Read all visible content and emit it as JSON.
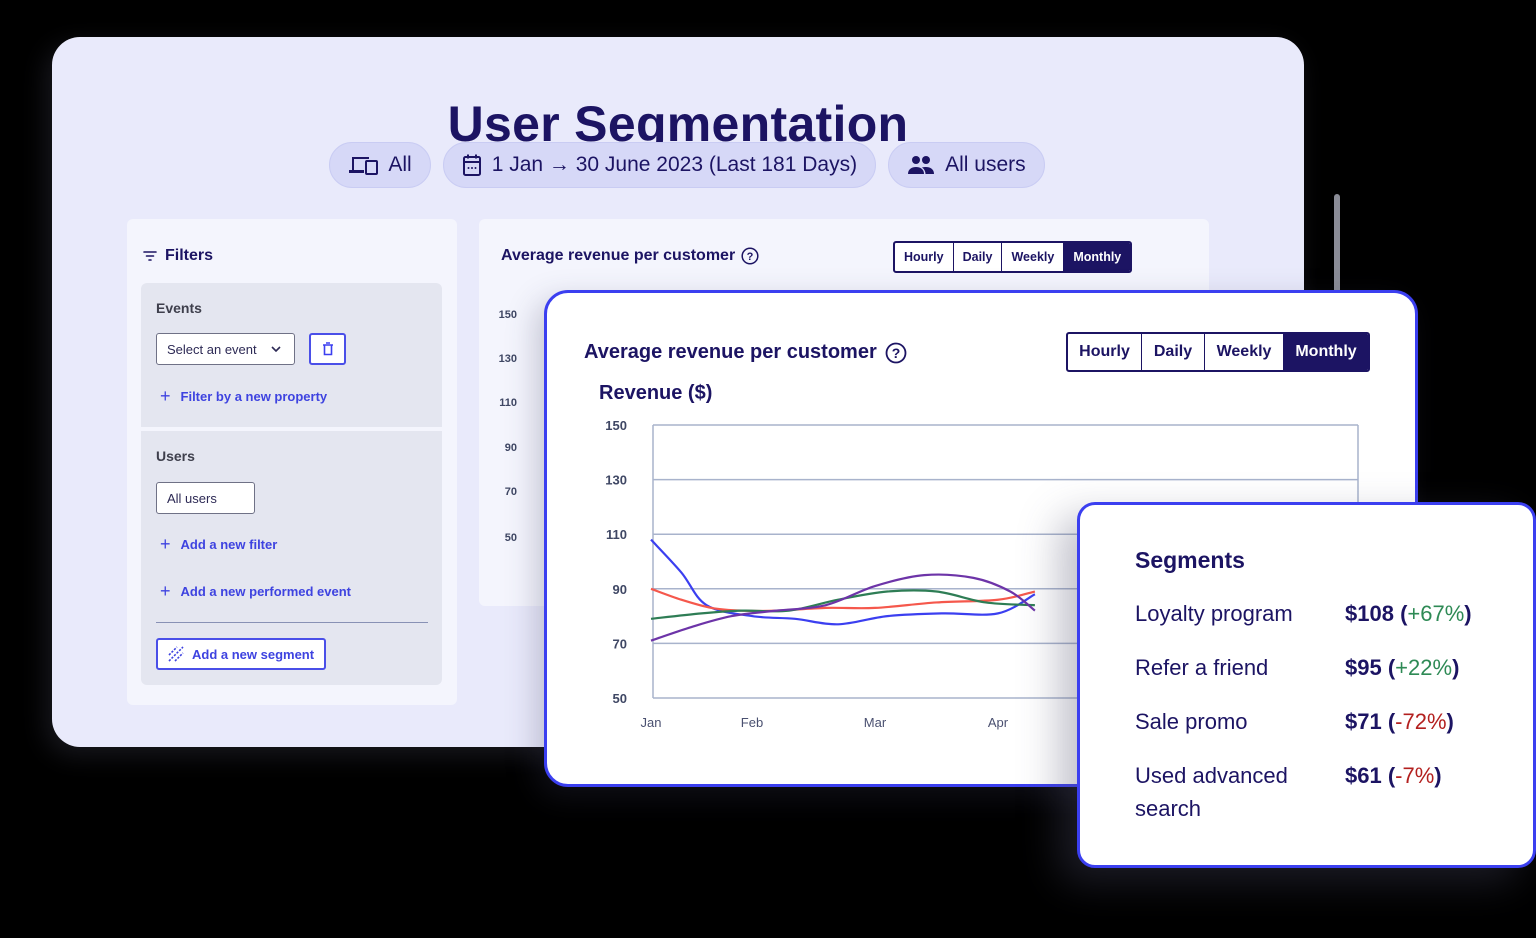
{
  "page": {
    "title": "User Segmentation"
  },
  "header_pills": {
    "platform": {
      "icon": "devices-icon",
      "label": "All"
    },
    "date_range": {
      "icon": "calendar-icon",
      "label": "1 Jan → 30 June 2023 (Last 181 Days)"
    },
    "audience": {
      "icon": "users-icon",
      "label": "All users"
    }
  },
  "filters": {
    "title": "Filters",
    "icon": "filter-icon",
    "events": {
      "label": "Events",
      "select_placeholder": "Select an event",
      "delete_icon": "trash-icon",
      "add_property_label": "Filter by a new property"
    },
    "users": {
      "label": "Users",
      "select_value": "All users",
      "add_filter_label": "Add a new filter",
      "add_event_label": "Add a new performed event",
      "add_segment_label": "Add a new segment",
      "add_segment_icon": "hatch-icon"
    }
  },
  "background_chart": {
    "title": "Average revenue per customer",
    "help_icon": "help-circle-icon",
    "granularity_options": [
      "Hourly",
      "Daily",
      "Weekly",
      "Monthly"
    ],
    "selected_granularity": "Monthly",
    "y_ticks": [
      "150",
      "130",
      "110",
      "90",
      "70",
      "50"
    ]
  },
  "chart_card": {
    "title": "Average revenue per customer",
    "help_icon": "help-circle-icon",
    "granularity_options": [
      "Hourly",
      "Daily",
      "Weekly",
      "Monthly"
    ],
    "selected_granularity": "Monthly",
    "ylabel": "Revenue ($)"
  },
  "chart_data": {
    "type": "line",
    "title": "Average revenue per customer",
    "xlabel": "",
    "ylabel": "Revenue ($)",
    "ylim": [
      50,
      150
    ],
    "y_ticks": [
      150,
      130,
      110,
      90,
      70,
      50
    ],
    "categories": [
      "Jan",
      "Feb",
      "Mar",
      "Apr"
    ],
    "grid": true,
    "legend_position": "none",
    "series": [
      {
        "name": "Blue",
        "color": "#3b3ff0",
        "x": [
          0,
          0.3,
          0.55,
          1.0,
          1.35,
          1.7,
          2.1,
          2.55,
          3.0,
          3.3
        ],
        "values": [
          108,
          96,
          84,
          80,
          79,
          77,
          80,
          81,
          81,
          88
        ]
      },
      {
        "name": "Red",
        "color": "#f5584c",
        "x": [
          0,
          0.3,
          0.6,
          0.9,
          1.2,
          1.6,
          2.0,
          2.5,
          3.0,
          3.3
        ],
        "values": [
          90,
          86,
          83,
          82,
          82,
          83,
          83,
          85,
          86,
          89
        ]
      },
      {
        "name": "Green",
        "color": "#2e7d55",
        "x": [
          0,
          0.5,
          0.9,
          1.3,
          1.7,
          2.1,
          2.5,
          2.9,
          3.3
        ],
        "values": [
          79,
          81,
          82,
          82,
          86,
          89,
          89,
          85,
          84
        ]
      },
      {
        "name": "Purple",
        "color": "#6d34a8",
        "x": [
          0,
          0.4,
          0.8,
          1.2,
          1.6,
          2.0,
          2.4,
          2.8,
          3.1,
          3.3
        ],
        "values": [
          71,
          76,
          80,
          82,
          84,
          91,
          95,
          94,
          89,
          82
        ]
      }
    ]
  },
  "segments": {
    "title": "Segments",
    "rows": [
      {
        "name": "Loyalty program",
        "value": "$108",
        "change": "+67%",
        "trend": "up"
      },
      {
        "name": "Refer a friend",
        "value": "$95",
        "change": "+22%",
        "trend": "up"
      },
      {
        "name": "Sale promo",
        "value": "$71",
        "change": "-72%",
        "trend": "down"
      },
      {
        "name": "Used advanced search",
        "value": "$61",
        "change": "-7%",
        "trend": "down"
      }
    ]
  },
  "colors": {
    "primary_navy": "#1c1463",
    "accent_blue": "#3b3ff0",
    "positive": "#2e8a55",
    "negative": "#b3201f",
    "card_bg": "#e9eafb"
  }
}
